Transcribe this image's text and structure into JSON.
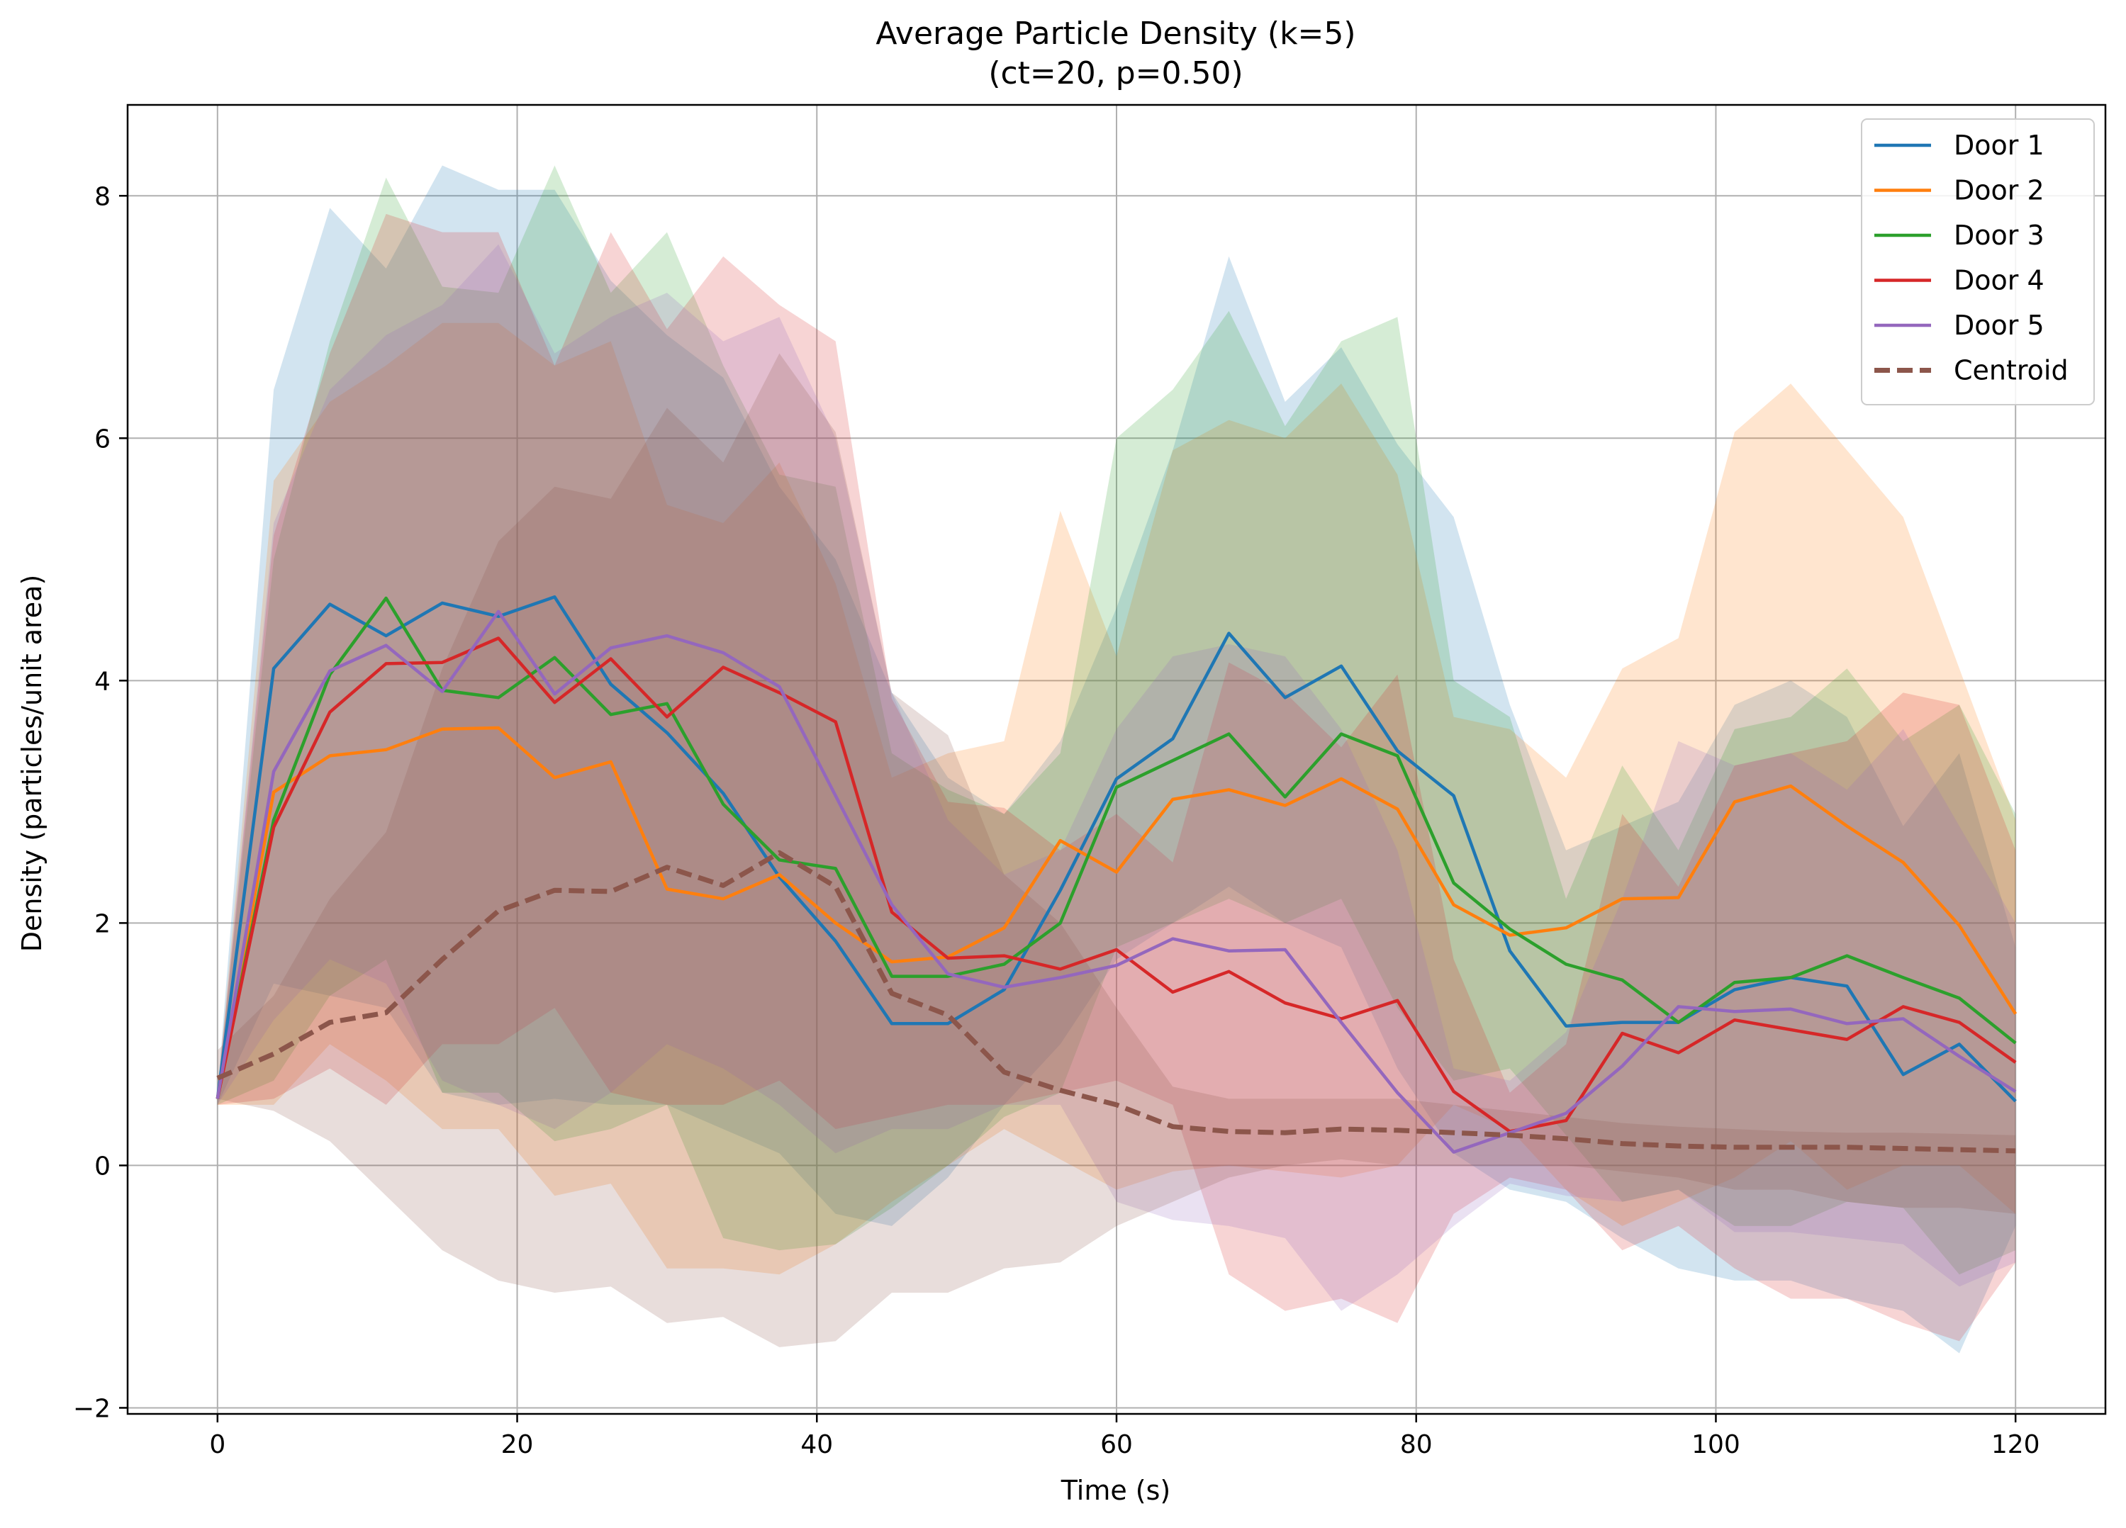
{
  "chart_data": {
    "type": "line",
    "title": "Average Particle Density (k=5)",
    "subtitle": "(ct=20, p=0.50)",
    "xlabel": "Time (s)",
    "ylabel": "Density (particles/unit area)",
    "xlim": [
      -6,
      126
    ],
    "ylim": [
      -2.05,
      8.75
    ],
    "xticks": [
      0,
      20,
      40,
      60,
      80,
      100,
      120
    ],
    "yticks": [
      -2,
      0,
      2,
      4,
      6,
      8
    ],
    "grid": true,
    "legend_position": "top-right",
    "x": [
      0,
      3.75,
      7.5,
      11.25,
      15,
      18.75,
      22.5,
      26.25,
      30,
      33.75,
      37.5,
      41.25,
      45,
      48.75,
      52.5,
      56.25,
      60,
      63.75,
      67.5,
      71.25,
      75,
      78.75,
      82.5,
      86.25,
      90,
      93.75,
      97.5,
      101.25,
      105,
      108.75,
      112.5,
      116.25,
      120
    ],
    "series": [
      {
        "name": "Door 1",
        "color": "#1f77b4",
        "style": "solid",
        "values": [
          0.55,
          4.1,
          4.63,
          4.37,
          4.64,
          4.53,
          4.69,
          3.97,
          3.57,
          3.07,
          2.38,
          1.85,
          1.17,
          1.17,
          1.45,
          2.27,
          3.19,
          3.52,
          4.39,
          3.86,
          4.12,
          3.42,
          3.05,
          1.77,
          1.15,
          1.18,
          1.18,
          1.45,
          1.55,
          1.48,
          0.75,
          1.0,
          0.53
        ],
        "lower": [
          0.5,
          1.5,
          1.4,
          1.3,
          0.6,
          0.5,
          0.55,
          0.5,
          0.5,
          0.3,
          0.1,
          -0.4,
          -0.5,
          -0.1,
          0.5,
          1.0,
          1.7,
          2.0,
          2.3,
          2.0,
          1.8,
          0.8,
          0.1,
          -0.2,
          -0.3,
          -0.6,
          -0.85,
          -0.95,
          -0.95,
          -1.1,
          -1.2,
          -1.55,
          -0.5
        ],
        "upper": [
          0.6,
          6.4,
          7.9,
          7.4,
          8.25,
          8.05,
          8.05,
          7.3,
          6.85,
          6.5,
          5.6,
          5.0,
          3.9,
          3.2,
          2.9,
          3.5,
          4.6,
          5.9,
          7.5,
          6.3,
          6.75,
          5.95,
          5.35,
          3.8,
          2.6,
          2.8,
          3.0,
          3.8,
          4.0,
          3.7,
          2.8,
          3.4,
          1.8
        ]
      },
      {
        "name": "Door 2",
        "color": "#ff7f0e",
        "style": "solid",
        "values": [
          0.55,
          3.08,
          3.38,
          3.43,
          3.6,
          3.61,
          3.2,
          3.33,
          2.28,
          2.2,
          2.4,
          2.0,
          1.68,
          1.72,
          1.96,
          2.68,
          2.42,
          3.02,
          3.1,
          2.97,
          3.19,
          2.94,
          2.15,
          1.9,
          1.96,
          2.2,
          2.21,
          3.0,
          3.13,
          2.8,
          2.5,
          1.98,
          1.25
        ],
        "lower": [
          0.5,
          0.5,
          1.0,
          0.7,
          0.3,
          0.3,
          -0.25,
          -0.15,
          -0.85,
          -0.85,
          -0.9,
          -0.65,
          -0.3,
          0.0,
          0.3,
          0.05,
          -0.2,
          -0.05,
          0.0,
          -0.05,
          -0.1,
          0.0,
          0.5,
          0.3,
          -0.2,
          -0.5,
          -0.3,
          -0.1,
          0.2,
          -0.2,
          0.0,
          0.0,
          -0.4
        ],
        "upper": [
          0.6,
          5.65,
          6.3,
          6.6,
          6.95,
          6.95,
          6.6,
          6.8,
          5.45,
          5.3,
          5.8,
          4.8,
          3.2,
          3.4,
          3.5,
          5.4,
          4.2,
          5.9,
          6.15,
          6.0,
          6.45,
          5.7,
          3.7,
          3.6,
          3.2,
          4.1,
          4.35,
          6.05,
          6.45,
          5.9,
          5.35,
          4.1,
          2.85
        ]
      },
      {
        "name": "Door 3",
        "color": "#2ca02c",
        "style": "solid",
        "values": [
          0.55,
          2.85,
          4.05,
          4.68,
          3.92,
          3.86,
          4.19,
          3.72,
          3.81,
          2.98,
          2.52,
          2.45,
          1.56,
          1.56,
          1.66,
          2.0,
          3.12,
          3.34,
          3.56,
          3.04,
          3.56,
          3.38,
          2.33,
          1.95,
          1.66,
          1.53,
          1.18,
          1.51,
          1.55,
          1.73,
          1.55,
          1.38,
          1.01
        ],
        "lower": [
          0.5,
          0.7,
          1.4,
          1.7,
          0.6,
          0.6,
          0.2,
          0.3,
          0.5,
          -0.6,
          -0.7,
          -0.65,
          -0.35,
          0.0,
          0.4,
          0.6,
          1.8,
          2.0,
          2.2,
          2.0,
          2.2,
          1.3,
          0.7,
          0.8,
          0.25,
          -0.3,
          -0.2,
          -0.5,
          -0.5,
          -0.3,
          -0.35,
          -0.9,
          -0.7
        ],
        "upper": [
          0.6,
          5.0,
          6.8,
          8.15,
          7.25,
          7.2,
          8.25,
          7.2,
          7.7,
          6.6,
          5.7,
          5.6,
          3.4,
          3.1,
          2.9,
          3.4,
          6.0,
          6.4,
          7.05,
          6.1,
          6.8,
          7.0,
          4.0,
          3.7,
          2.2,
          3.3,
          2.6,
          3.6,
          3.7,
          4.1,
          3.5,
          3.8,
          2.9
        ]
      },
      {
        "name": "Door 4",
        "color": "#d62728",
        "style": "solid",
        "values": [
          0.55,
          2.79,
          3.74,
          4.14,
          4.15,
          4.35,
          3.82,
          4.18,
          3.7,
          4.11,
          3.9,
          3.66,
          2.09,
          1.71,
          1.73,
          1.62,
          1.78,
          1.43,
          1.6,
          1.34,
          1.21,
          1.36,
          0.61,
          0.28,
          0.37,
          1.09,
          0.93,
          1.2,
          1.12,
          1.04,
          1.31,
          1.18,
          0.85
        ],
        "lower": [
          0.5,
          0.55,
          0.8,
          0.5,
          1.0,
          1.0,
          1.3,
          0.6,
          0.5,
          0.5,
          0.7,
          0.3,
          0.4,
          0.5,
          0.5,
          0.6,
          0.7,
          0.5,
          -0.9,
          -1.2,
          -1.1,
          -1.3,
          -0.4,
          -0.1,
          -0.2,
          -0.7,
          -0.5,
          -0.85,
          -1.1,
          -1.1,
          -1.3,
          -1.45,
          -0.8
        ],
        "upper": [
          0.6,
          5.2,
          6.7,
          7.85,
          7.7,
          7.7,
          6.6,
          7.7,
          6.9,
          7.5,
          7.1,
          6.8,
          3.85,
          3.0,
          2.95,
          2.6,
          2.9,
          2.5,
          4.15,
          3.9,
          3.45,
          4.05,
          1.7,
          0.6,
          1.0,
          2.9,
          2.3,
          3.3,
          3.4,
          3.5,
          3.9,
          3.8,
          2.6
        ]
      },
      {
        "name": "Door 5",
        "color": "#9467bd",
        "style": "solid",
        "values": [
          0.55,
          3.25,
          4.08,
          4.29,
          3.91,
          4.57,
          3.89,
          4.27,
          4.37,
          4.23,
          3.95,
          3.05,
          2.15,
          1.58,
          1.47,
          1.55,
          1.65,
          1.87,
          1.77,
          1.78,
          1.18,
          0.6,
          0.11,
          0.27,
          0.43,
          0.82,
          1.31,
          1.27,
          1.29,
          1.17,
          1.21,
          0.9,
          0.61
        ],
        "lower": [
          0.5,
          1.2,
          1.7,
          1.5,
          0.7,
          0.5,
          0.3,
          0.6,
          1.0,
          0.8,
          0.5,
          0.1,
          0.3,
          0.3,
          0.5,
          0.5,
          -0.3,
          -0.45,
          -0.5,
          -0.6,
          -1.2,
          -0.9,
          -0.5,
          -0.15,
          -0.25,
          -0.3,
          -0.2,
          -0.55,
          -0.55,
          -0.6,
          -0.65,
          -1.0,
          -0.8
        ],
        "upper": [
          0.6,
          5.3,
          6.4,
          6.85,
          7.1,
          7.6,
          6.7,
          7.0,
          7.2,
          6.8,
          7.0,
          6.0,
          3.9,
          2.85,
          2.4,
          2.6,
          3.6,
          4.2,
          4.3,
          4.2,
          3.6,
          2.6,
          0.8,
          0.7,
          1.1,
          2.2,
          3.5,
          3.3,
          3.4,
          3.1,
          3.6,
          2.8,
          2.0
        ]
      },
      {
        "name": "Centroid",
        "color": "#8c564b",
        "style": "dashed",
        "values": [
          0.72,
          0.92,
          1.18,
          1.26,
          1.7,
          2.1,
          2.27,
          2.26,
          2.46,
          2.31,
          2.58,
          2.3,
          1.42,
          1.24,
          0.77,
          0.62,
          0.5,
          0.32,
          0.28,
          0.27,
          0.3,
          0.29,
          0.27,
          0.25,
          0.22,
          0.18,
          0.16,
          0.15,
          0.15,
          0.15,
          0.14,
          0.13,
          0.12
        ],
        "lower": [
          0.55,
          0.45,
          0.2,
          -0.25,
          -0.7,
          -0.95,
          -1.05,
          -1.0,
          -1.3,
          -1.25,
          -1.5,
          -1.45,
          -1.05,
          -1.05,
          -0.85,
          -0.8,
          -0.5,
          -0.3,
          -0.1,
          0.0,
          0.05,
          0.0,
          0.0,
          0.0,
          0.0,
          -0.05,
          -0.1,
          -0.2,
          -0.2,
          -0.3,
          -0.35,
          -0.35,
          -0.4
        ],
        "upper": [
          0.95,
          1.4,
          2.2,
          2.75,
          4.1,
          5.15,
          5.6,
          5.5,
          6.25,
          5.8,
          6.7,
          6.05,
          3.9,
          3.55,
          2.4,
          2.0,
          1.3,
          0.65,
          0.55,
          0.55,
          0.55,
          0.55,
          0.5,
          0.45,
          0.4,
          0.35,
          0.32,
          0.3,
          0.28,
          0.27,
          0.27,
          0.26,
          0.25
        ]
      }
    ]
  }
}
